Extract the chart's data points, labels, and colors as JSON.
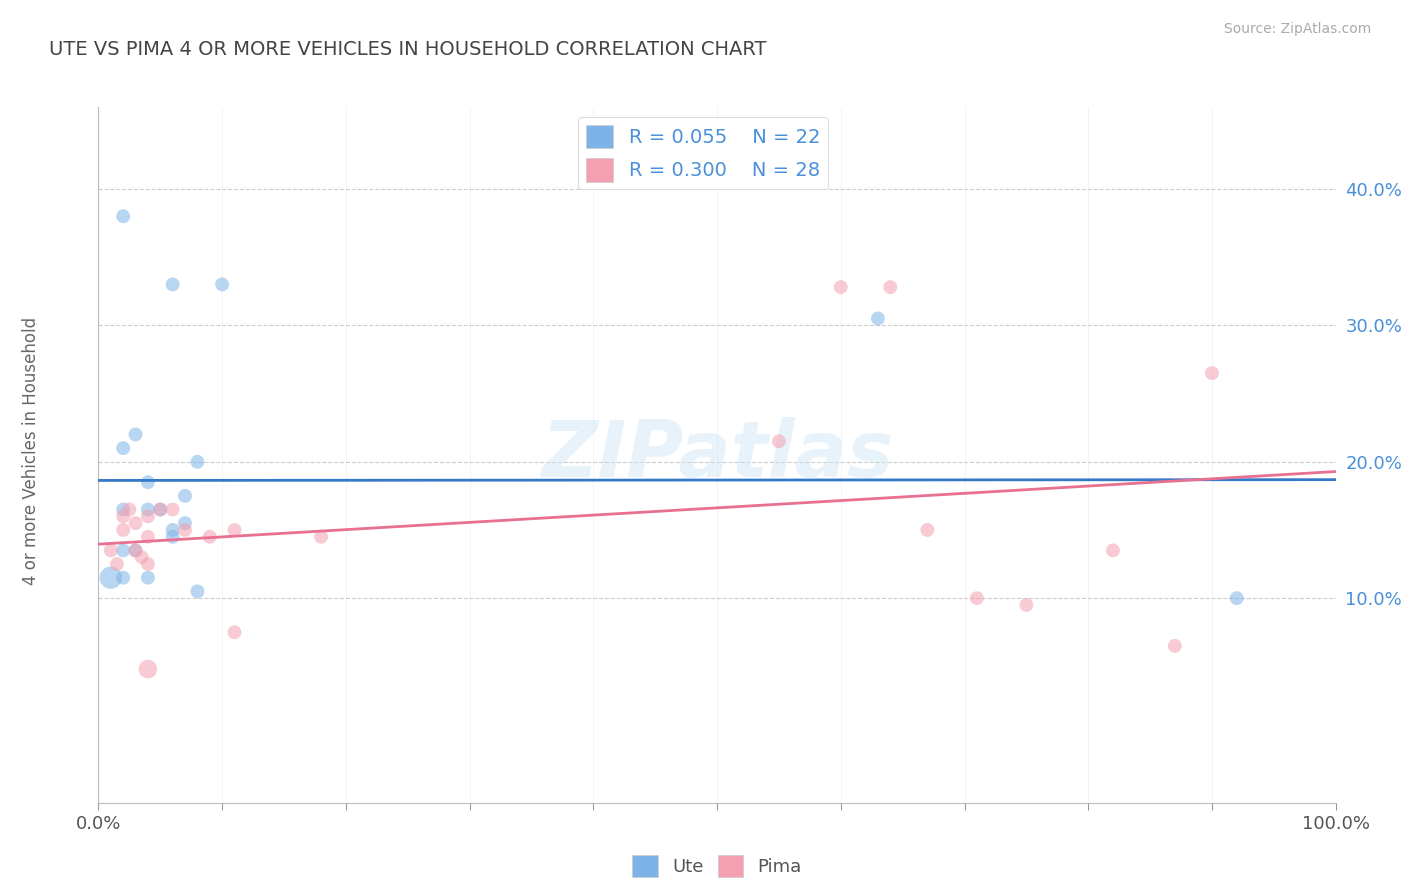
{
  "title": "UTE VS PIMA 4 OR MORE VEHICLES IN HOUSEHOLD CORRELATION CHART",
  "source_text": "Source: ZipAtlas.com",
  "ylabel": "4 or more Vehicles in Household",
  "xlim": [
    0.0,
    1.0
  ],
  "ylim": [
    -0.05,
    0.46
  ],
  "xtick_vals": [
    0.0,
    0.1,
    0.2,
    0.3,
    0.4,
    0.5,
    0.6,
    0.7,
    0.8,
    0.9,
    1.0
  ],
  "xtick_labels_show": {
    "0.0": "0.0%",
    "1.0": "100.0%"
  },
  "ytick_vals": [
    0.1,
    0.2,
    0.3,
    0.4
  ],
  "ytick_labels": [
    "10.0%",
    "20.0%",
    "30.0%",
    "40.0%"
  ],
  "legend_r_ute": "R = 0.055",
  "legend_n_ute": "N = 22",
  "legend_r_pima": "R = 0.300",
  "legend_n_pima": "N = 28",
  "watermark": "ZIPatlas",
  "legend_label_ute": "Ute",
  "legend_label_pima": "Pima",
  "ute_color": "#7eb3e8",
  "pima_color": "#f4a0b0",
  "ute_line_color": "#3478c8",
  "pima_line_color": "#e87090",
  "ute_scatter": [
    [
      0.02,
      0.38
    ],
    [
      0.06,
      0.33
    ],
    [
      0.1,
      0.33
    ],
    [
      0.03,
      0.22
    ],
    [
      0.02,
      0.21
    ],
    [
      0.04,
      0.185
    ],
    [
      0.08,
      0.2
    ],
    [
      0.02,
      0.165
    ],
    [
      0.04,
      0.165
    ],
    [
      0.05,
      0.165
    ],
    [
      0.07,
      0.175
    ],
    [
      0.07,
      0.155
    ],
    [
      0.06,
      0.15
    ],
    [
      0.06,
      0.145
    ],
    [
      0.03,
      0.135
    ],
    [
      0.02,
      0.135
    ],
    [
      0.04,
      0.115
    ],
    [
      0.02,
      0.115
    ],
    [
      0.01,
      0.115
    ],
    [
      0.08,
      0.105
    ],
    [
      0.63,
      0.305
    ],
    [
      0.92,
      0.1
    ]
  ],
  "ute_sizes": [
    100,
    100,
    100,
    100,
    100,
    100,
    100,
    100,
    100,
    100,
    100,
    100,
    100,
    100,
    100,
    100,
    100,
    100,
    260,
    100,
    100,
    100
  ],
  "pima_scatter": [
    [
      0.01,
      0.135
    ],
    [
      0.015,
      0.125
    ],
    [
      0.02,
      0.16
    ],
    [
      0.02,
      0.15
    ],
    [
      0.025,
      0.165
    ],
    [
      0.03,
      0.155
    ],
    [
      0.03,
      0.135
    ],
    [
      0.035,
      0.13
    ],
    [
      0.04,
      0.145
    ],
    [
      0.04,
      0.16
    ],
    [
      0.04,
      0.125
    ],
    [
      0.05,
      0.165
    ],
    [
      0.06,
      0.165
    ],
    [
      0.07,
      0.15
    ],
    [
      0.09,
      0.145
    ],
    [
      0.11,
      0.15
    ],
    [
      0.11,
      0.075
    ],
    [
      0.18,
      0.145
    ],
    [
      0.04,
      0.048
    ],
    [
      0.55,
      0.215
    ],
    [
      0.6,
      0.328
    ],
    [
      0.64,
      0.328
    ],
    [
      0.67,
      0.15
    ],
    [
      0.71,
      0.1
    ],
    [
      0.75,
      0.095
    ],
    [
      0.82,
      0.135
    ],
    [
      0.87,
      0.065
    ],
    [
      0.9,
      0.265
    ]
  ],
  "pima_sizes": [
    100,
    100,
    100,
    100,
    100,
    100,
    100,
    100,
    100,
    100,
    100,
    100,
    100,
    100,
    100,
    100,
    100,
    100,
    180,
    100,
    100,
    100,
    100,
    100,
    100,
    100,
    100,
    100
  ],
  "background_color": "#ffffff",
  "grid_color": "#cccccc",
  "ytick_color": "#4a90d9",
  "xtick_color": "#555555",
  "title_color": "#444444",
  "source_color": "#aaaaaa",
  "ylabel_color": "#666666"
}
